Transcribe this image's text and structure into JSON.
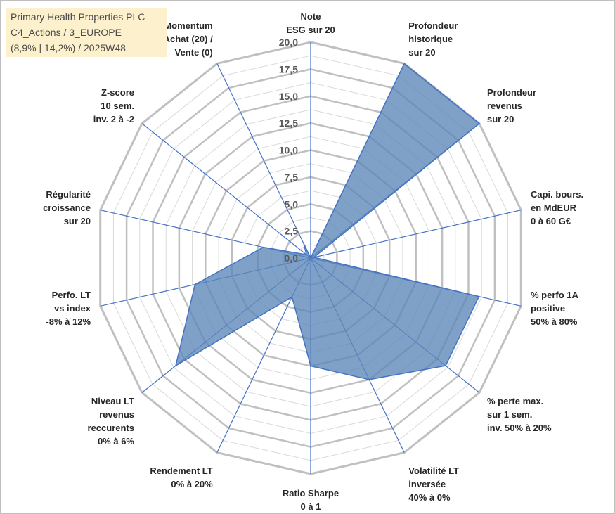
{
  "info": {
    "line1": "Primary Health Properties PLC",
    "line2": "C4_Actions / 3_EUROPE",
    "line3": "(8,9% | 14,2%) / 2025W48"
  },
  "colors": {
    "fill": "#5b86b9",
    "stroke": "#4472c4",
    "grid_major": "#c0c0c0",
    "grid_minor": "#d9d9d9",
    "spoke": "#4472c4"
  },
  "chart_data": {
    "type": "radar",
    "title": "",
    "r_range": [
      0,
      20
    ],
    "r_ticks": [
      "0,0",
      "2,5",
      "5,0",
      "7,5",
      "10,0",
      "12,5",
      "15,0",
      "17,5",
      "20,0"
    ],
    "grid": true,
    "legend": "none",
    "axes": [
      [
        "Note",
        "ESG sur 20"
      ],
      [
        "Profondeur",
        "historique",
        "sur 20"
      ],
      [
        "Profondeur",
        "revenus",
        "sur 20"
      ],
      [
        "Capi. bours.",
        "en MdEUR",
        "0 à 60 G€"
      ],
      [
        "% perfo 1A",
        "positive",
        "50% à 80%"
      ],
      [
        "% perte max.",
        "sur 1 sem.",
        "inv. 50% à 20%"
      ],
      [
        "Volatilité LT",
        "inversée",
        "40% à 0%"
      ],
      [
        "Ratio Sharpe",
        "0 à 1"
      ],
      [
        "Rendement LT",
        "0% à 20%"
      ],
      [
        "Niveau LT",
        "revenus",
        "reccurents",
        "0% à 6%"
      ],
      [
        "Perfo. LT",
        "vs index",
        "-8% à 12%"
      ],
      [
        "Régularité",
        "croissance",
        "sur 20"
      ],
      [
        "Z-score",
        "10 sem.",
        "inv. 2 à -2"
      ],
      [
        "Momentum",
        "Achat (20) /",
        "Vente (0)"
      ]
    ],
    "series": [
      {
        "values": [
          0.0,
          20.0,
          20.0,
          0.3,
          16.0,
          16.0,
          12.5,
          10.0,
          4.0,
          16.0,
          11.0,
          4.5,
          0.5,
          1.5
        ]
      }
    ]
  }
}
